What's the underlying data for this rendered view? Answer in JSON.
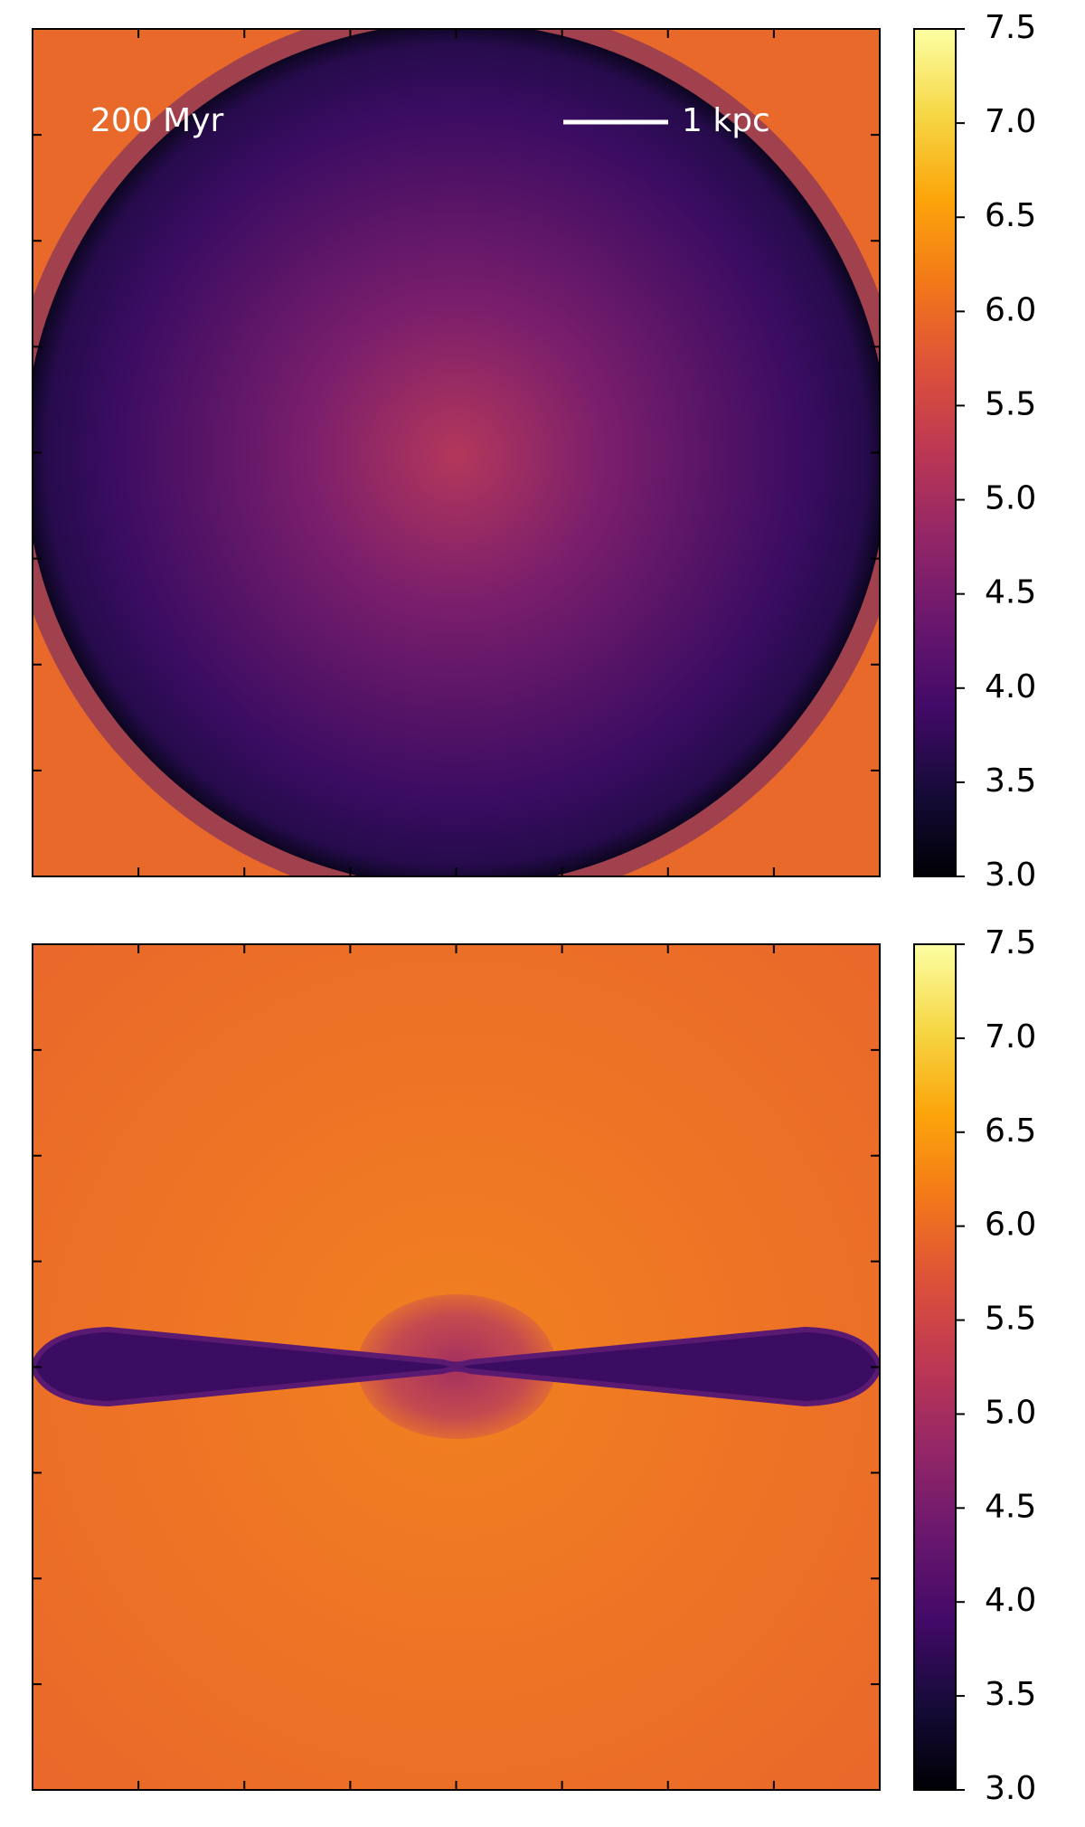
{
  "chart_data": [
    {
      "type": "heatmap",
      "annotations": [
        "200 Myr",
        "1 kpc"
      ],
      "clim": [
        3,
        7.5
      ],
      "cticks": [
        {
          "value": 3,
          "label": "3.0"
        },
        3.5,
        {
          "value": 4,
          "label": "4.0"
        },
        4.5,
        {
          "value": 5,
          "label": "5.0"
        },
        5.5,
        {
          "value": 6,
          "label": "6.0"
        },
        6.5,
        {
          "value": 7,
          "label": "7.0"
        },
        7.5
      ]
    },
    {
      "type": "heatmap",
      "clim": [
        3,
        7.5
      ],
      "cticks": [
        {
          "value": 3,
          "label": "3.0"
        },
        3.5,
        {
          "value": 4,
          "label": "4.0"
        },
        4.5,
        {
          "value": 5,
          "label": "5.0"
        },
        5.5,
        {
          "value": 6,
          "label": "6.0"
        },
        6.5,
        {
          "value": 7,
          "label": "7.0"
        },
        7.5
      ]
    }
  ]
}
